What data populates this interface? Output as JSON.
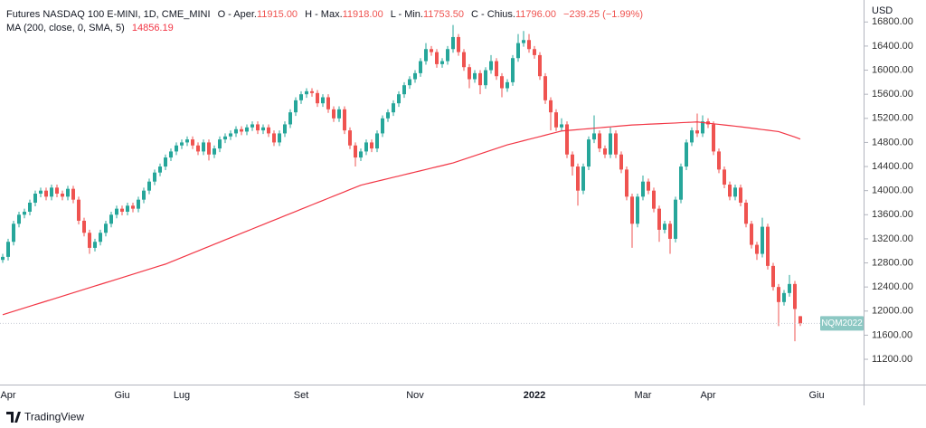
{
  "chart_data": {
    "type": "candlestick",
    "title": "Futures NASDAQ 100 E-MINI, 1D, CME_MINI",
    "ohlc_legend": [
      {
        "label": "O - Aper.",
        "value": "11915.00"
      },
      {
        "label": "H - Max.",
        "value": "11918.00"
      },
      {
        "label": "L - Min.",
        "value": "11753.50"
      },
      {
        "label": "C - Chius.",
        "value": "11796.00"
      }
    ],
    "change": "−239.25 (−1.99%)",
    "up_color": "#26a69a",
    "down_color": "#ef5350",
    "y_unit": "USD",
    "price_tag": "NQM2022",
    "ylim": [
      10780,
      17165
    ],
    "yticks": [
      {
        "value": 11200,
        "label": "11200.00"
      },
      {
        "value": 11600,
        "label": "11600.00"
      },
      {
        "value": 12000,
        "label": "12000.00"
      },
      {
        "value": 12400,
        "label": "12400.00"
      },
      {
        "value": 12800,
        "label": "12800.00"
      },
      {
        "value": 13200,
        "label": "13200.00"
      },
      {
        "value": 13600,
        "label": "13600.00"
      },
      {
        "value": 14000,
        "label": "14000.00"
      },
      {
        "value": 14400,
        "label": "14400.00"
      },
      {
        "value": 14800,
        "label": "14800.00"
      },
      {
        "value": 15200,
        "label": "15200.00"
      },
      {
        "value": 15600,
        "label": "15600.00"
      },
      {
        "value": 16000,
        "label": "16000.00"
      },
      {
        "value": 16400,
        "label": "16400.00"
      },
      {
        "value": 16800,
        "label": "16800.00"
      }
    ],
    "categories": [
      null,
      "Apr",
      null,
      null,
      null,
      null,
      null,
      null,
      null,
      null,
      null,
      null,
      null,
      null,
      null,
      null,
      null,
      null,
      null,
      null,
      null,
      null,
      "Giu",
      null,
      null,
      null,
      null,
      null,
      null,
      null,
      null,
      null,
      null,
      "Lug",
      null,
      null,
      null,
      null,
      null,
      null,
      null,
      null,
      null,
      null,
      null,
      null,
      null,
      null,
      null,
      null,
      null,
      null,
      null,
      null,
      null,
      "Set",
      null,
      null,
      null,
      null,
      null,
      null,
      null,
      null,
      null,
      null,
      null,
      null,
      null,
      null,
      null,
      null,
      null,
      null,
      null,
      null,
      "Nov",
      null,
      null,
      null,
      null,
      null,
      null,
      null,
      null,
      null,
      null,
      null,
      null,
      null,
      null,
      null,
      null,
      null,
      null,
      null,
      null,
      null,
      "2022",
      null,
      null,
      null,
      null,
      null,
      null,
      null,
      null,
      null,
      null,
      null,
      null,
      null,
      null,
      null,
      null,
      null,
      null,
      null,
      "Mar",
      null,
      null,
      null,
      null,
      null,
      null,
      null,
      null,
      null,
      null,
      null,
      "Apr",
      null,
      null,
      null,
      null,
      null,
      null,
      null,
      null,
      null,
      null,
      null,
      null,
      null,
      null,
      null,
      null,
      null,
      null,
      null,
      "Giu",
      null,
      null,
      null,
      null,
      null,
      null,
      null,
      null
    ],
    "open": [
      12850,
      12900,
      13150,
      13450,
      13600,
      13650,
      13800,
      13950,
      14000,
      13900,
      14050,
      13950,
      13900,
      14030,
      13850,
      13500,
      13300,
      13050,
      13150,
      13300,
      13450,
      13600,
      13700,
      13650,
      13750,
      13700,
      13850,
      14000,
      14150,
      14300,
      14400,
      14550,
      14650,
      14750,
      14800,
      14850,
      14750,
      14650,
      14800,
      14600,
      14700,
      14850,
      14900,
      14950,
      15020,
      14980,
      15050,
      15100,
      15000,
      15050,
      14950,
      14800,
      14950,
      15100,
      15300,
      15500,
      15600,
      15650,
      15620,
      15450,
      15550,
      15350,
      15200,
      15350,
      15000,
      14750,
      14550,
      14650,
      14800,
      14700,
      14950,
      15200,
      15300,
      15450,
      15600,
      15750,
      15850,
      15950,
      16150,
      16350,
      16300,
      16100,
      16150,
      16350,
      16550,
      16300,
      16050,
      15850,
      15950,
      15750,
      16000,
      16150,
      15900,
      15700,
      15800,
      16200,
      16450,
      16500,
      16350,
      16250,
      15900,
      15500,
      15300,
      15050,
      15100,
      14600,
      14400,
      14000,
      14400,
      14850,
      14950,
      14700,
      14600,
      14950,
      14600,
      14350,
      13900,
      13450,
      13900,
      14150,
      14000,
      13700,
      13350,
      13450,
      13200,
      13850,
      14400,
      14800,
      15000,
      14950,
      15150,
      15100,
      14650,
      14350,
      14100,
      13900,
      14050,
      13800,
      13450,
      13100,
      12950,
      13400,
      12750,
      12400,
      12150,
      12300,
      12450,
      11915,
      null,
      null,
      null,
      null,
      null,
      null,
      null,
      null,
      null,
      null,
      null
    ],
    "high": [
      12950,
      13200,
      13500,
      13650,
      13700,
      13850,
      14000,
      14050,
      14050,
      14100,
      14100,
      14000,
      14080,
      14080,
      13900,
      13550,
      13350,
      13200,
      13350,
      13500,
      13650,
      13750,
      13750,
      13800,
      13800,
      13900,
      14050,
      14200,
      14350,
      14450,
      14600,
      14700,
      14800,
      14850,
      14900,
      14900,
      14800,
      14850,
      14850,
      14750,
      14900,
      14950,
      15000,
      15070,
      15070,
      15100,
      15150,
      15150,
      15100,
      15100,
      15000,
      15000,
      15150,
      15350,
      15550,
      15650,
      15700,
      15700,
      15670,
      15600,
      15600,
      15400,
      15400,
      15400,
      15050,
      14800,
      14700,
      14850,
      14850,
      15000,
      15250,
      15350,
      15500,
      15650,
      15800,
      15900,
      16000,
      16200,
      16450,
      16400,
      16350,
      16200,
      16400,
      16750,
      16600,
      16350,
      16100,
      16000,
      16000,
      16050,
      16250,
      16200,
      15950,
      15850,
      16250,
      16600,
      16650,
      16600,
      16400,
      16300,
      15950,
      15550,
      15350,
      15200,
      15150,
      14650,
      14450,
      14450,
      14900,
      15250,
      15000,
      14750,
      15050,
      15000,
      14650,
      14400,
      13950,
      13950,
      14250,
      14200,
      14050,
      13750,
      13500,
      13500,
      13900,
      14450,
      14850,
      15050,
      15280,
      15250,
      15200,
      15150,
      14700,
      14400,
      14150,
      14100,
      14100,
      13850,
      13500,
      13150,
      13550,
      13450,
      12800,
      12450,
      12350,
      12600,
      12500,
      11918,
      null,
      null,
      null,
      null,
      null,
      null,
      null,
      null,
      null,
      null,
      null
    ],
    "low": [
      12800,
      12840,
      13090,
      13390,
      13540,
      13590,
      13740,
      13890,
      13840,
      13840,
      13890,
      13840,
      13840,
      13790,
      13440,
      13240,
      12950,
      12990,
      13090,
      13240,
      13390,
      13540,
      13590,
      13590,
      13640,
      13640,
      13790,
      13940,
      14090,
      14240,
      14340,
      14490,
      14590,
      14690,
      14740,
      14690,
      14590,
      14590,
      14500,
      14540,
      14640,
      14790,
      14840,
      14890,
      14920,
      14920,
      14990,
      14940,
      14940,
      14890,
      14740,
      14740,
      14890,
      15040,
      15240,
      15440,
      15540,
      15560,
      15390,
      15390,
      15290,
      15140,
      15140,
      14940,
      14690,
      14400,
      14490,
      14590,
      14640,
      14640,
      14890,
      15140,
      15240,
      15390,
      15540,
      15690,
      15790,
      15890,
      16090,
      16240,
      16040,
      16040,
      16090,
      16290,
      16240,
      15990,
      15700,
      15790,
      15600,
      15690,
      15940,
      15840,
      15550,
      15640,
      15740,
      16140,
      16390,
      16290,
      16190,
      15840,
      15440,
      15000,
      14990,
      14990,
      14540,
      14250,
      13750,
      13940,
      14340,
      14790,
      14640,
      14540,
      14540,
      14540,
      14290,
      13840,
      13050,
      13390,
      13840,
      13940,
      13640,
      13150,
      13290,
      12950,
      13140,
      13790,
      14340,
      14740,
      14890,
      14890,
      15040,
      14590,
      14290,
      14040,
      13840,
      13840,
      13740,
      13390,
      13040,
      12850,
      12890,
      12690,
      12340,
      11750,
      12090,
      12240,
      11500,
      11753.5,
      null,
      null,
      null,
      null,
      null,
      null,
      null,
      null,
      null,
      null,
      null
    ],
    "close": [
      12900,
      13150,
      13450,
      13600,
      13650,
      13800,
      13950,
      14000,
      13900,
      14050,
      13950,
      13900,
      14030,
      13850,
      13500,
      13300,
      13050,
      13150,
      13300,
      13450,
      13600,
      13700,
      13650,
      13750,
      13700,
      13850,
      14000,
      14150,
      14300,
      14400,
      14550,
      14650,
      14750,
      14800,
      14850,
      14750,
      14650,
      14800,
      14600,
      14700,
      14850,
      14900,
      14950,
      15020,
      14980,
      15050,
      15100,
      15000,
      15050,
      14950,
      14800,
      14950,
      15100,
      15300,
      15500,
      15600,
      15650,
      15620,
      15450,
      15550,
      15350,
      15200,
      15350,
      15000,
      14750,
      14550,
      14650,
      14800,
      14700,
      14950,
      15200,
      15300,
      15450,
      15600,
      15750,
      15850,
      15950,
      16150,
      16350,
      16300,
      16100,
      16150,
      16350,
      16550,
      16300,
      16050,
      15850,
      15950,
      15750,
      16000,
      16150,
      15900,
      15700,
      15800,
      16200,
      16450,
      16500,
      16350,
      16250,
      15900,
      15500,
      15300,
      15050,
      15100,
      14600,
      14400,
      14000,
      14400,
      14850,
      14950,
      14700,
      14600,
      14950,
      14600,
      14350,
      13900,
      13450,
      13900,
      14150,
      14000,
      13700,
      13350,
      13450,
      13200,
      13850,
      14400,
      14800,
      15000,
      14950,
      15150,
      15100,
      14650,
      14350,
      14100,
      13900,
      14050,
      13800,
      13450,
      13100,
      12950,
      13400,
      12750,
      12400,
      12150,
      12300,
      12450,
      12035.25,
      11796,
      null,
      null,
      null,
      null,
      null,
      null,
      null,
      null,
      null,
      null,
      null
    ],
    "series": [
      {
        "name": "MA (200, close, 0, SMA, 5)",
        "color": "#f23645",
        "values": [
          11940,
          11968,
          11996,
          12024,
          12052,
          12080,
          12108,
          12136,
          12164,
          12192,
          12220,
          12248,
          12276,
          12304,
          12332,
          12360,
          12388,
          12416,
          12444,
          12472,
          12500,
          12528,
          12556,
          12584,
          12612,
          12640,
          12668,
          12696,
          12724,
          12752,
          12780,
          12817,
          12853,
          12890,
          12926,
          12963,
          12999,
          13036,
          13072,
          13109,
          13145,
          13182,
          13218,
          13255,
          13291,
          13328,
          13364,
          13401,
          13437,
          13474,
          13510,
          13546,
          13583,
          13619,
          13655,
          13691,
          13728,
          13764,
          13800,
          13836,
          13873,
          13909,
          13945,
          13981,
          14018,
          14054,
          14090,
          14112,
          14134,
          14155,
          14177,
          14199,
          14221,
          14242,
          14264,
          14286,
          14308,
          14329,
          14351,
          14373,
          14395,
          14416,
          14438,
          14460,
          14490,
          14520,
          14550,
          14580,
          14610,
          14640,
          14670,
          14700,
          14730,
          14760,
          14783,
          14806,
          14829,
          14852,
          14875,
          14898,
          14921,
          14944,
          14967,
          14990,
          14998,
          15005,
          15013,
          15021,
          15028,
          15036,
          15044,
          15052,
          15059,
          15067,
          15075,
          15082,
          15090,
          15094,
          15098,
          15103,
          15107,
          15111,
          15115,
          15119,
          15123,
          15128,
          15132,
          15136,
          15140,
          15130,
          15120,
          15110,
          15100,
          15090,
          15080,
          15070,
          15060,
          15049,
          15037,
          15026,
          15014,
          15003,
          14991,
          14980,
          14950,
          14920,
          14890,
          14856.19,
          null,
          null,
          null,
          null,
          null,
          null,
          null,
          null,
          null,
          null,
          null
        ]
      }
    ]
  },
  "brand": "TradingView"
}
